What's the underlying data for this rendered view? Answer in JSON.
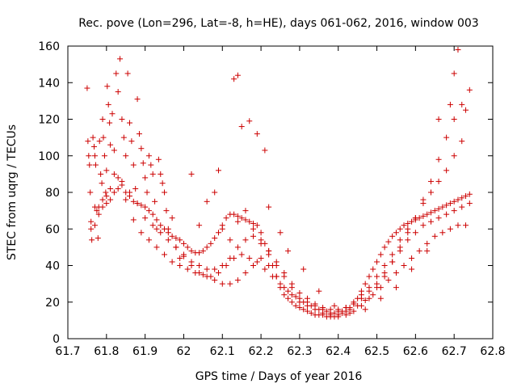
{
  "chart_data": {
    "type": "scatter",
    "title": "Rec. pove (Lon=296, Lat=-8, h=HE), days 061-062, 2016, window 003",
    "xlabel": "GPS time / Days of year 2016",
    "ylabel": "STEC from uqrg / TECUs",
    "xlim": [
      61.7,
      62.8
    ],
    "ylim": [
      0,
      160
    ],
    "xticks": [
      "61.7",
      "61.8",
      "61.9",
      "62",
      "62.1",
      "62.2",
      "62.3",
      "62.4",
      "62.5",
      "62.6",
      "62.7",
      "62.8"
    ],
    "yticks": [
      "0",
      "20",
      "40",
      "60",
      "80",
      "100",
      "120",
      "140",
      "160"
    ],
    "marker": "+",
    "color": "#cc0000",
    "grid": false,
    "legend": "none",
    "series": [
      {
        "x": [
          61.75,
          61.752,
          61.754,
          61.756,
          61.758,
          61.76,
          61.762,
          61.765,
          61.768,
          61.77,
          61.772,
          61.775,
          61.778,
          61.78,
          61.782,
          61.785,
          61.788,
          61.79,
          61.792,
          61.795,
          61.798,
          61.8,
          61.802,
          61.805,
          61.808,
          61.81,
          61.815,
          61.82,
          61.825,
          61.83,
          61.835,
          61.84,
          61.845,
          61.85,
          61.855,
          61.86,
          61.865,
          61.87,
          61.875,
          61.88,
          61.885,
          61.89,
          61.895,
          61.9,
          61.905,
          61.91,
          61.915,
          61.92,
          61.925,
          61.93,
          61.935,
          61.94,
          61.945,
          61.95,
          61.955,
          61.96,
          61.97,
          61.98,
          61.99
        ],
        "y": [
          137,
          108,
          100,
          95,
          80,
          64,
          54,
          110,
          105,
          100,
          95,
          70,
          55,
          72,
          108,
          90,
          85,
          120,
          110,
          100,
          80,
          78,
          138,
          128,
          118,
          106,
          123,
          103,
          145,
          135,
          153,
          120,
          110,
          100,
          145,
          118,
          108,
          95,
          82,
          131,
          112,
          104,
          96,
          88,
          80,
          100,
          95,
          90,
          75,
          60,
          98,
          90,
          85,
          80,
          70,
          60,
          66,
          50,
          44
        ]
      },
      {
        "x": [
          61.76,
          61.77,
          61.78,
          61.79,
          61.8,
          61.81,
          61.82,
          61.83,
          61.84,
          61.85,
          61.86,
          61.87,
          61.88,
          61.89,
          61.9,
          61.91,
          61.92,
          61.93,
          61.94,
          61.95,
          61.96,
          61.97,
          61.98,
          61.99,
          62.0,
          62.01,
          62.02,
          62.03,
          62.04,
          62.05,
          62.06,
          62.07,
          62.08,
          62.09,
          62.1,
          62.11,
          62.12,
          62.13,
          62.14,
          62.15,
          62.16,
          62.17,
          62.18,
          62.19,
          62.2,
          62.21,
          62.22,
          62.23,
          62.24,
          62.25,
          62.26,
          62.27,
          62.28,
          62.29,
          62.3,
          62.31,
          62.32,
          62.33,
          62.34,
          62.35,
          62.36,
          62.37,
          62.38,
          62.39,
          62.4,
          62.41,
          62.42,
          62.43,
          62.44,
          62.45,
          62.46,
          62.47,
          62.48,
          62.49,
          62.5,
          62.51,
          62.52,
          62.53,
          62.54,
          62.55,
          62.56,
          62.57,
          62.58,
          62.59,
          62.6,
          62.61,
          62.62,
          62.63,
          62.64,
          62.65,
          62.66,
          62.67,
          62.68,
          62.69,
          62.7,
          62.71,
          62.72,
          62.73,
          62.74
        ],
        "y": [
          60,
          62,
          68,
          72,
          74,
          76,
          80,
          82,
          84,
          80,
          78,
          75,
          74,
          73,
          72,
          70,
          68,
          65,
          62,
          60,
          58,
          56,
          55,
          54,
          52,
          50,
          48,
          47,
          47,
          48,
          50,
          52,
          55,
          58,
          62,
          66,
          68,
          68,
          67,
          66,
          65,
          64,
          63,
          62,
          58,
          52,
          46,
          40,
          34,
          28,
          24,
          22,
          20,
          18,
          17,
          16,
          15,
          14,
          13,
          13,
          13,
          12,
          12,
          12,
          13,
          14,
          15,
          17,
          19,
          22,
          26,
          30,
          34,
          38,
          42,
          46,
          50,
          53,
          56,
          58,
          60,
          62,
          63,
          64,
          65,
          66,
          67,
          68,
          69,
          70,
          71,
          72,
          73,
          74,
          75,
          76,
          77,
          78,
          79
        ]
      },
      {
        "x": [
          61.77,
          61.79,
          61.81,
          61.83,
          61.85,
          61.87,
          61.89,
          61.91,
          61.93,
          61.95,
          61.97,
          61.99,
          62.01,
          62.03,
          62.05,
          62.07,
          62.09,
          62.11,
          62.13,
          62.15,
          62.17,
          62.19,
          62.21,
          62.23,
          62.25,
          62.27,
          62.29,
          62.31,
          62.33,
          62.35,
          62.37,
          62.39,
          62.41,
          62.43,
          62.45,
          62.47,
          62.49,
          62.51,
          62.53,
          62.55,
          62.57,
          62.59,
          62.61,
          62.63,
          62.65,
          62.67,
          62.69,
          62.71,
          62.73
        ],
        "y": [
          72,
          76,
          82,
          88,
          76,
          65,
          58,
          54,
          50,
          46,
          42,
          40,
          38,
          36,
          35,
          34,
          36,
          40,
          44,
          46,
          44,
          42,
          38,
          34,
          30,
          26,
          23,
          20,
          18,
          16,
          15,
          14,
          15,
          16,
          18,
          21,
          24,
          28,
          32,
          36,
          40,
          44,
          48,
          52,
          56,
          58,
          60,
          62,
          62
        ]
      },
      {
        "x": [
          61.8,
          61.82,
          61.84,
          61.86,
          61.88,
          61.9,
          61.92,
          61.94,
          61.96,
          61.98,
          62.0,
          62.02,
          62.04,
          62.06,
          62.08,
          62.1,
          62.12,
          62.14,
          62.16,
          62.18,
          62.2,
          62.22,
          62.24,
          62.26,
          62.28,
          62.3,
          62.32,
          62.34,
          62.36,
          62.38,
          62.4,
          62.42,
          62.44,
          62.46,
          62.48,
          62.5,
          62.52,
          62.54,
          62.56,
          62.58,
          62.6,
          62.62,
          62.64,
          62.66,
          62.68,
          62.7,
          62.72,
          62.74
        ],
        "y": [
          92,
          90,
          86,
          80,
          74,
          66,
          62,
          58,
          54,
          50,
          46,
          42,
          40,
          38,
          38,
          40,
          44,
          50,
          54,
          56,
          52,
          48,
          42,
          36,
          30,
          25,
          22,
          19,
          17,
          16,
          16,
          17,
          19,
          22,
          26,
          30,
          36,
          42,
          48,
          54,
          58,
          62,
          64,
          66,
          68,
          70,
          72,
          74
        ]
      },
      {
        "x": [
          62.02,
          62.04,
          62.06,
          62.08,
          62.1,
          62.12,
          62.14,
          62.16,
          62.18,
          62.2,
          62.22,
          62.24,
          62.26,
          62.28,
          62.3,
          62.32,
          62.34,
          62.36,
          62.38,
          62.4,
          62.42,
          62.44,
          62.46,
          62.48,
          62.5,
          62.52,
          62.54,
          62.56,
          62.58,
          62.6,
          62.62,
          62.64,
          62.66,
          62.68,
          62.7,
          62.72
        ],
        "y": [
          90,
          62,
          75,
          80,
          60,
          54,
          64,
          70,
          60,
          54,
          48,
          40,
          34,
          28,
          22,
          20,
          18,
          16,
          14,
          15,
          17,
          20,
          24,
          28,
          34,
          40,
          46,
          54,
          60,
          66,
          74,
          80,
          86,
          92,
          100,
          108
        ]
      },
      {
        "x": [
          62.0,
          62.02,
          62.04,
          62.06,
          62.08,
          62.1,
          62.12,
          62.14,
          62.16,
          62.18,
          62.2,
          62.22,
          62.24,
          62.26,
          62.28,
          62.3,
          62.32,
          62.34,
          62.36,
          62.38,
          62.4,
          62.42,
          62.44,
          62.46,
          62.48,
          62.5,
          62.52,
          62.54,
          62.56,
          62.58,
          62.6,
          62.62,
          62.64,
          62.66,
          62.68,
          62.7,
          62.72,
          62.74
        ],
        "y": [
          45,
          40,
          36,
          34,
          32,
          30,
          30,
          32,
          36,
          40,
          44,
          40,
          34,
          28,
          24,
          20,
          18,
          16,
          14,
          13,
          12,
          13,
          15,
          18,
          22,
          28,
          34,
          42,
          50,
          58,
          66,
          76,
          86,
          98,
          110,
          120,
          128,
          136
        ]
      },
      {
        "x": [
          62.09,
          62.13,
          62.14,
          62.15,
          62.17,
          62.19,
          62.21,
          62.22,
          62.25,
          62.27,
          62.31,
          62.35,
          62.39,
          62.43,
          62.47,
          62.51,
          62.55,
          62.59,
          62.63,
          62.66,
          62.69,
          62.7,
          62.71,
          62.73
        ],
        "y": [
          92,
          142,
          144,
          116,
          119,
          112,
          103,
          72,
          58,
          48,
          38,
          26,
          18,
          14,
          16,
          22,
          28,
          38,
          48,
          120,
          128,
          145,
          158,
          125
        ]
      }
    ]
  }
}
